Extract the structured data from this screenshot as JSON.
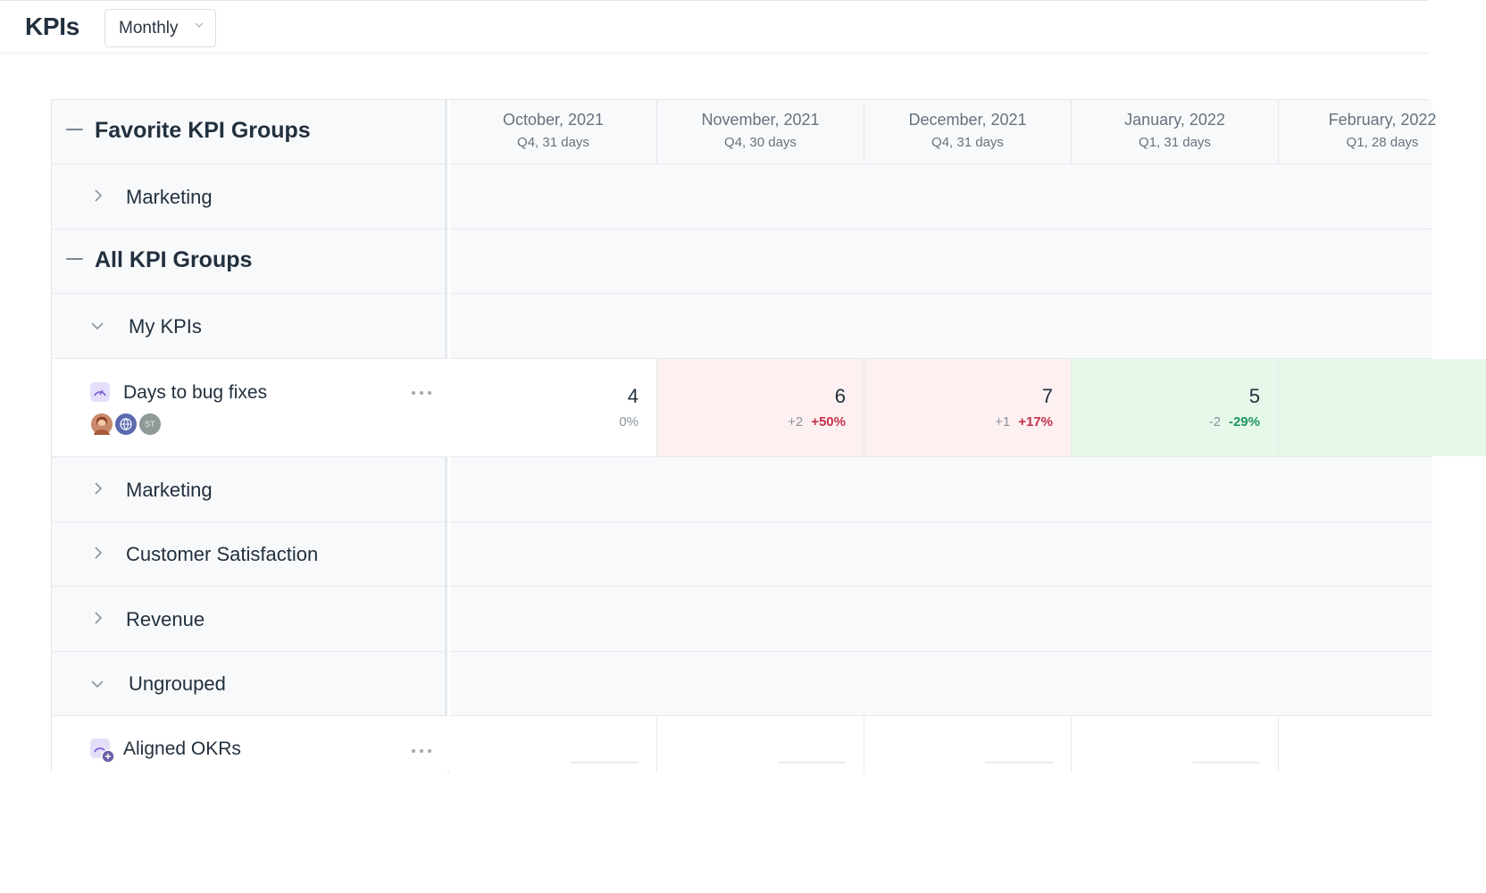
{
  "header": {
    "title": "KPIs",
    "period_select": {
      "value": "Monthly"
    }
  },
  "columns": [
    {
      "month": "October, 2021",
      "sub": "Q4, 31 days"
    },
    {
      "month": "November, 2021",
      "sub": "Q4, 30 days"
    },
    {
      "month": "December, 2021",
      "sub": "Q4, 31 days"
    },
    {
      "month": "January, 2022",
      "sub": "Q1, 31 days"
    },
    {
      "month": "February, 2022",
      "sub": "Q1, 28 days"
    }
  ],
  "sections": {
    "favorites": {
      "label": "Favorite KPI Groups",
      "groups": [
        {
          "label": "Marketing"
        }
      ]
    },
    "all": {
      "label": "All KPI Groups",
      "groups": [
        {
          "label": "My KPIs"
        },
        {
          "label": "Marketing"
        },
        {
          "label": "Customer Satisfaction"
        },
        {
          "label": "Revenue"
        },
        {
          "label": "Ungrouped"
        }
      ]
    }
  },
  "kpis": {
    "days_to_bug_fixes": {
      "name": "Days to bug fixes",
      "avatars": [
        {
          "initials": ""
        },
        {
          "initials": ""
        },
        {
          "initials": "ST"
        }
      ],
      "cells": [
        {
          "value": "4",
          "abs": "",
          "pct": "0%",
          "trend": "neutral"
        },
        {
          "value": "6",
          "abs": "+2",
          "pct": "+50%",
          "trend": "bad"
        },
        {
          "value": "7",
          "abs": "+1",
          "pct": "+17%",
          "trend": "bad"
        },
        {
          "value": "5",
          "abs": "-2",
          "pct": "-29%",
          "trend": "good"
        }
      ]
    },
    "aligned_okrs": {
      "name": "Aligned OKRs"
    }
  },
  "colors": {
    "bad_bg": "#fdf0f0",
    "good_bg": "#e5f8e9",
    "bad_text": "#c4314b",
    "good_text": "#1f9467",
    "kpi_icon": "#7b5fd6"
  }
}
